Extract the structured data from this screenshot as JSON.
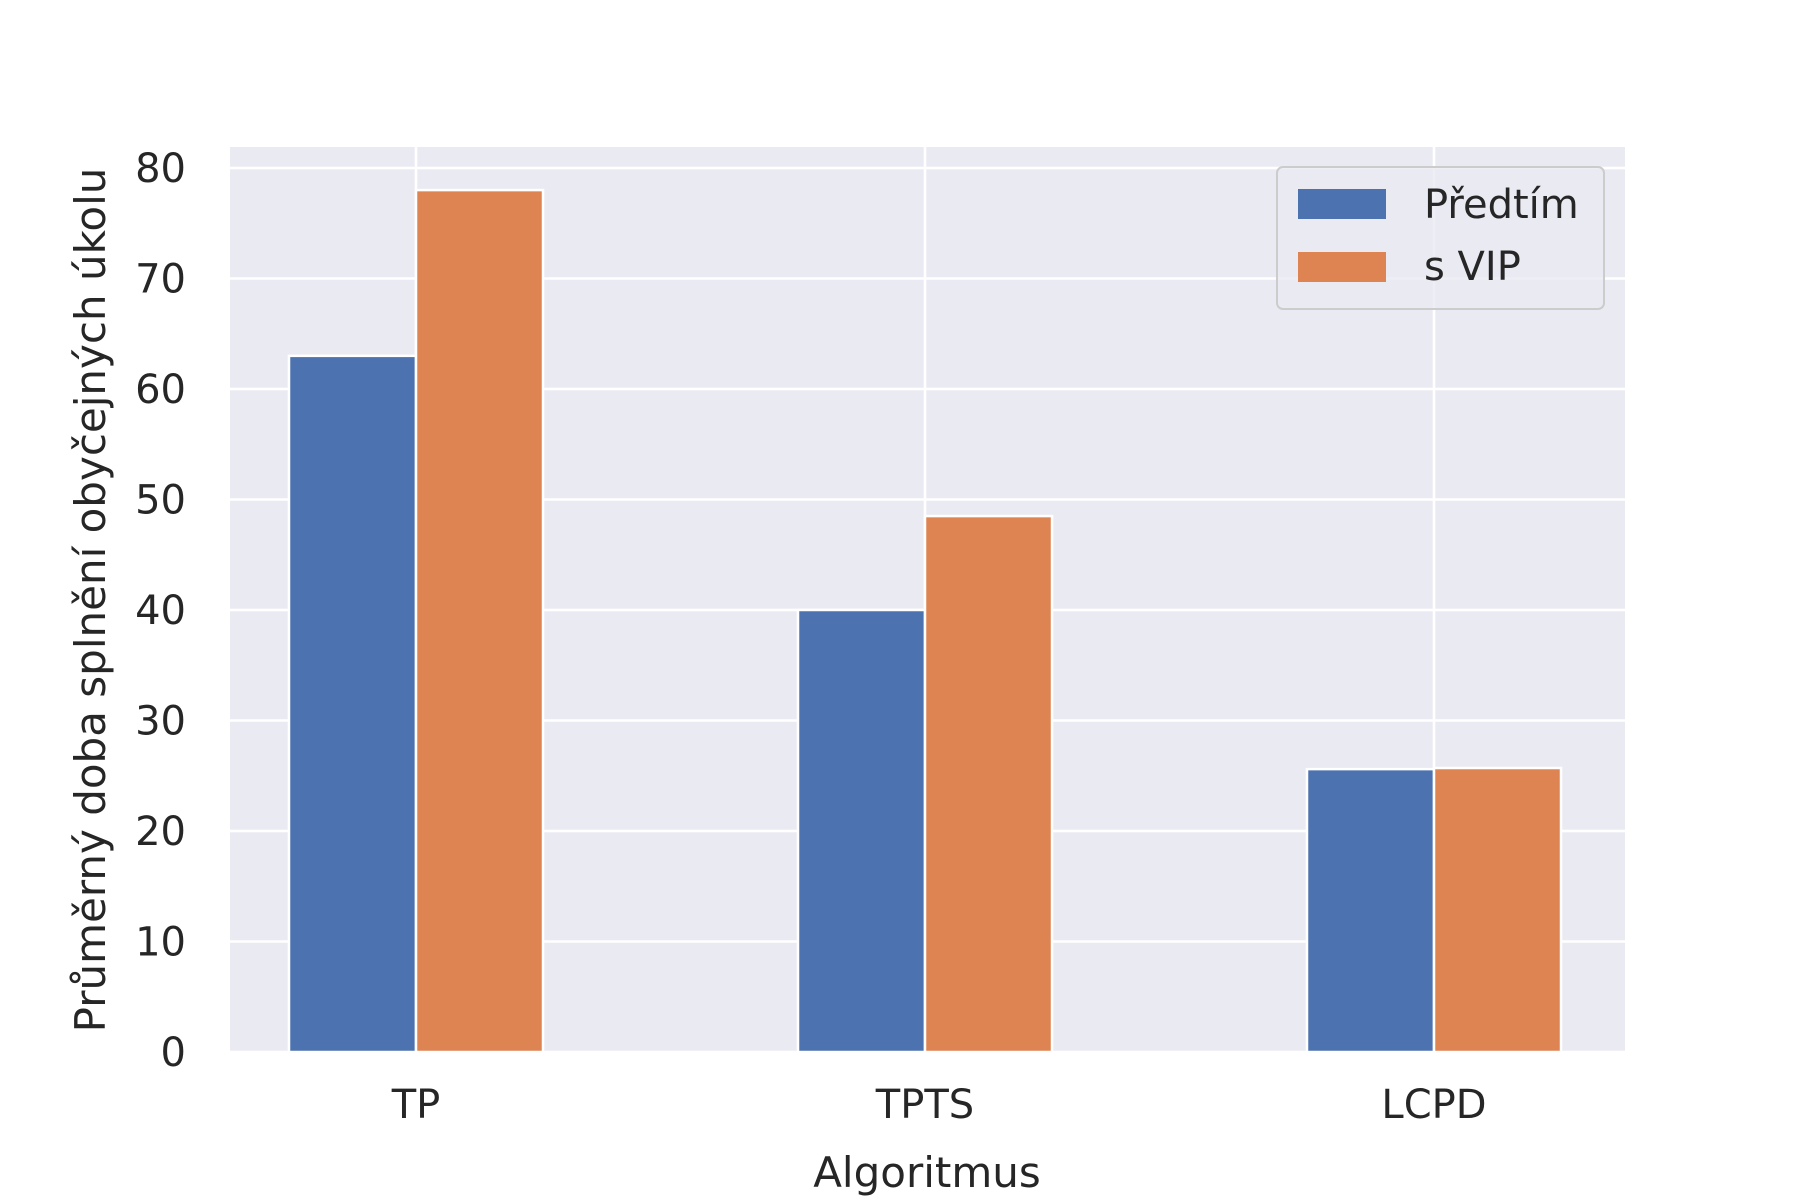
{
  "chart_data": {
    "type": "bar",
    "title": "",
    "xlabel": "Algoritmus",
    "ylabel": "Průměrný doba splnění obyčejných úkolu",
    "categories": [
      "TP",
      "TPTS",
      "LCPD"
    ],
    "series": [
      {
        "name": "Předtím",
        "values": [
          63.0,
          40.0,
          25.6
        ],
        "color": "#4c72b0"
      },
      {
        "name": "s VIP",
        "values": [
          78.0,
          48.5,
          25.7
        ],
        "color": "#dd8452"
      }
    ],
    "ylim": [
      0,
      81.9
    ],
    "yticks": [
      "0",
      "10",
      "20",
      "30",
      "40",
      "50",
      "60",
      "70",
      "80"
    ],
    "grid": true,
    "legend_position": "top-right",
    "background_color": "#eaeaf2",
    "grid_color": "#ffffff"
  }
}
